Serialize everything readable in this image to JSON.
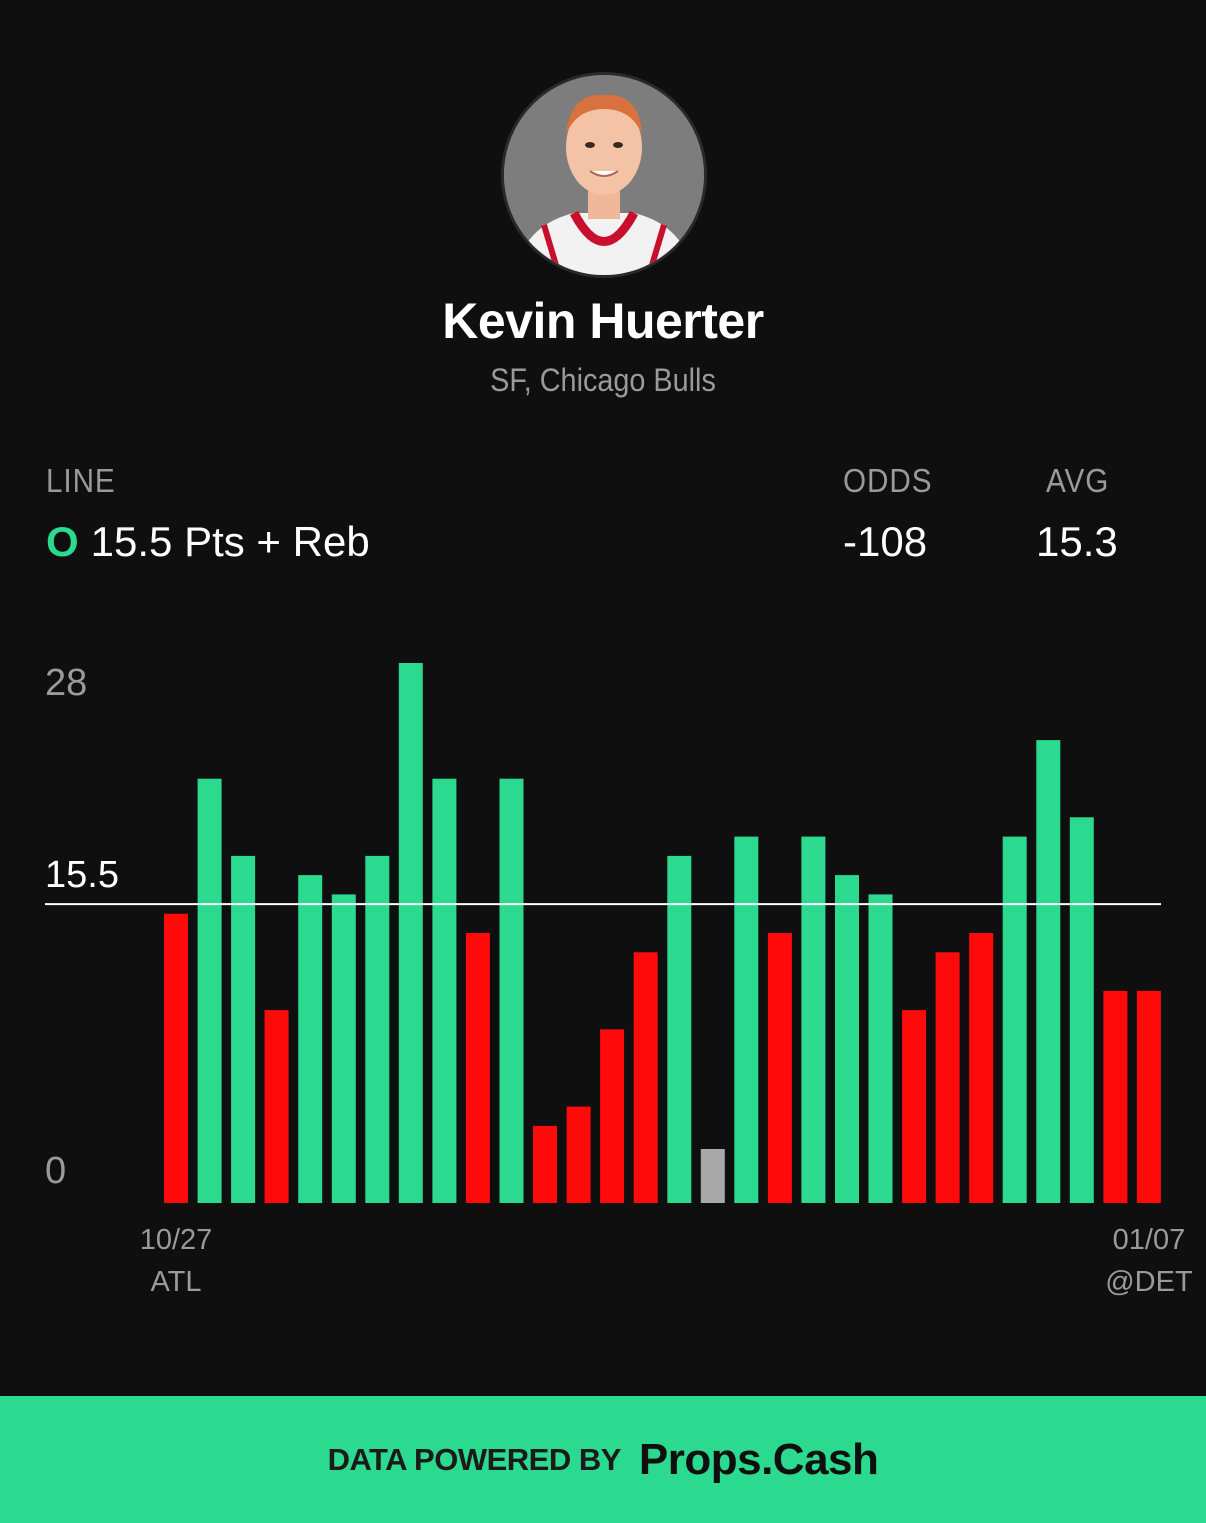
{
  "player": {
    "name": "Kevin Huerter",
    "team_line": "SF, Chicago Bulls"
  },
  "stats": {
    "line_label": "LINE",
    "line_side": "O",
    "line_value": "15.5 Pts + Reb",
    "odds_label": "ODDS",
    "odds_value": "-108",
    "avg_label": "AVG",
    "avg_value": "15.3"
  },
  "colors": {
    "over": "#2bd98f",
    "under": "#ff0a0a",
    "push": "#a8a8a8",
    "line": "#ffffff",
    "background": "#0f0f0f"
  },
  "chart_data": {
    "type": "bar",
    "title": "",
    "xlabel": "",
    "ylabel": "",
    "ylim": [
      0,
      28
    ],
    "y_ticks": [
      "28",
      "15.5",
      "0"
    ],
    "threshold": 15.5,
    "x_first": {
      "date": "10/27",
      "opponent": "ATL"
    },
    "x_last": {
      "date": "01/07",
      "opponent": "@DET"
    },
    "values": [
      15,
      22,
      18,
      10,
      17,
      16,
      18,
      28,
      22,
      14,
      22,
      4,
      5,
      9,
      13,
      18,
      2.8,
      19,
      14,
      19,
      17,
      16,
      10,
      13,
      14,
      19,
      24,
      20,
      11,
      11
    ],
    "results": [
      "under",
      "over",
      "over",
      "under",
      "over",
      "over",
      "over",
      "over",
      "over",
      "under",
      "over",
      "under",
      "under",
      "under",
      "under",
      "over",
      "push",
      "over",
      "under",
      "over",
      "over",
      "over",
      "under",
      "under",
      "under",
      "over",
      "over",
      "over",
      "under",
      "under"
    ]
  },
  "footer": {
    "prefix": "DATA POWERED BY",
    "brand": "Props.Cash"
  }
}
